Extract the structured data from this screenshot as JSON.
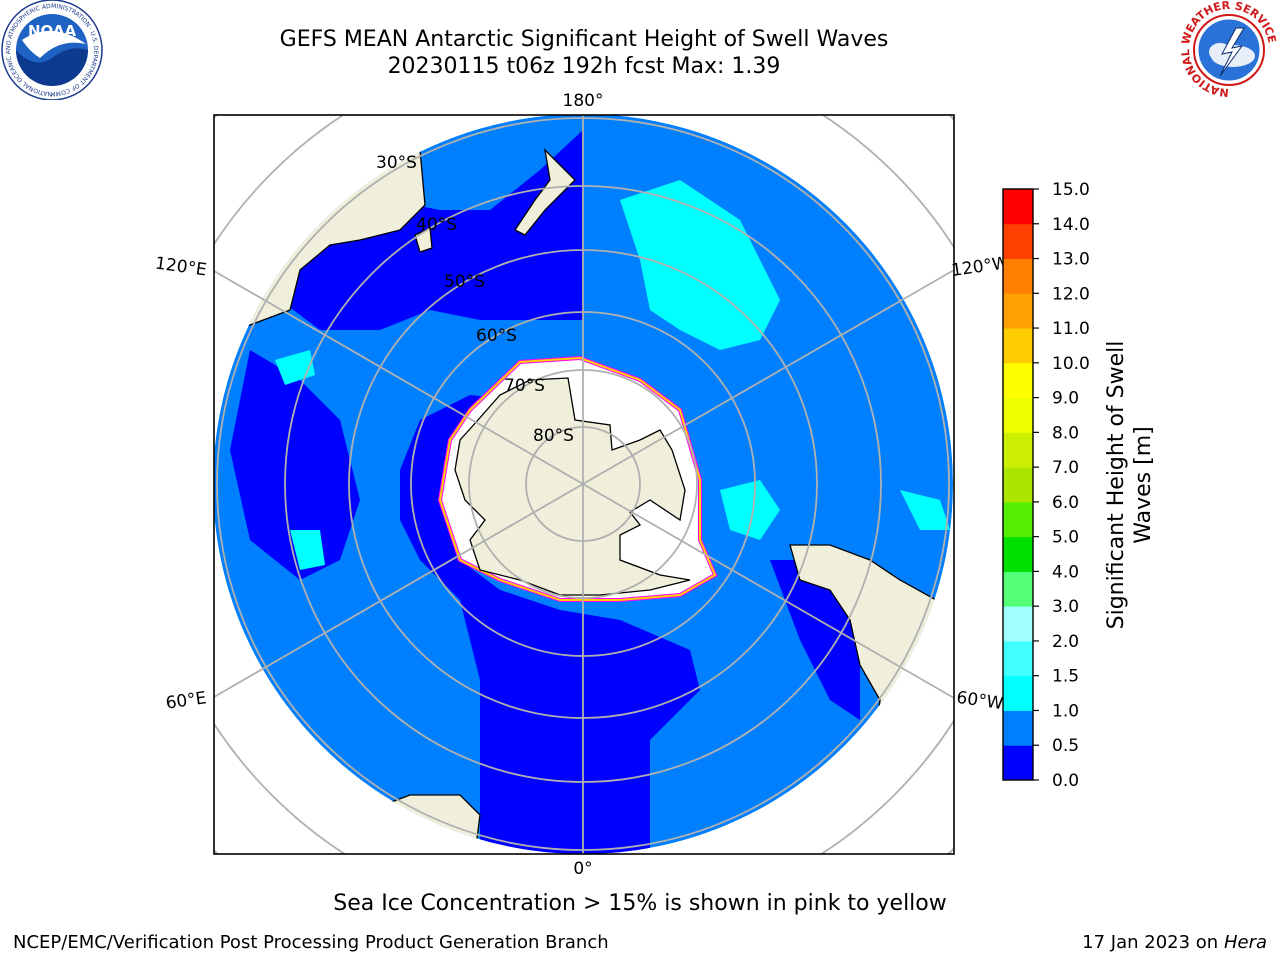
{
  "header": {
    "title_line1": "GEFS MEAN Antarctic Significant Height of Swell Waves",
    "title_line2": "20230115 t06z 192h fcst   Max: 1.39"
  },
  "logos": {
    "noaa_text": "NOAA",
    "noaa_ring": "NATIONAL OCEANIC AND ATMOSPHERIC ADMINISTRATION · U.S. DEPARTMENT OF COMMERCE",
    "nws_ring": "NATIONAL WEATHER SERVICE"
  },
  "map": {
    "projection": "south-polar-stereographic",
    "longitude_labels": {
      "top": "180°",
      "left_upper": "120°E",
      "right_upper": "120°W",
      "left_lower": "60°E",
      "right_lower": "60°W",
      "bottom": "0°"
    },
    "latitude_labels": [
      "30°S",
      "40°S",
      "50°S",
      "60°S",
      "70°S",
      "80°S"
    ],
    "colors": {
      "ocean_low": "#0000ff",
      "ocean_mid": "#0080ff",
      "ocean_high": "#00ffff",
      "land": "#efefdb",
      "sea_ice": "#ff00ff",
      "grid": "#b0b0b0"
    }
  },
  "colorbar": {
    "label_line1": "Significant Height of Swell",
    "label_line2": "Waves [m]",
    "ticks": [
      "0.0",
      "0.5",
      "1.0",
      "1.5",
      "2.0",
      "3.0",
      "4.0",
      "5.0",
      "6.0",
      "7.0",
      "8.0",
      "9.0",
      "10.0",
      "11.0",
      "12.0",
      "13.0",
      "14.0",
      "15.0"
    ],
    "colors": [
      "#0000ff",
      "#0080ff",
      "#00ffff",
      "#40ffff",
      "#a0ffff",
      "#55ff77",
      "#00e000",
      "#55ee00",
      "#aae600",
      "#ccee00",
      "#eeff00",
      "#ffff00",
      "#ffcc00",
      "#ffa000",
      "#ff7f00",
      "#ff4000",
      "#ff0000"
    ]
  },
  "footer": {
    "note": "Sea Ice Concentration > 15% is shown in pink to yellow",
    "credit": "NCEP/EMC/Verification Post Processing Product Generation Branch",
    "date": "17 Jan 2023 on ",
    "machine": "Hera"
  }
}
